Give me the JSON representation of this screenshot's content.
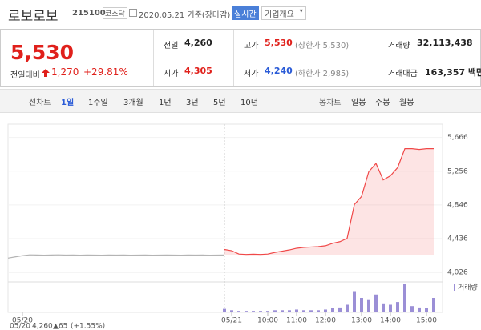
{
  "header": {
    "title": "로보로보",
    "code": "215100",
    "market": "코스닥",
    "date": "2020.05.21 기준(장마감)",
    "realtime": "실시간",
    "company": "기업개요"
  },
  "price": {
    "current": "5,530",
    "change_label": "전일대비",
    "change": "1,270",
    "change_pct": "+29.81%"
  },
  "quotes": [
    {
      "label": "전일",
      "value": "4,260"
    },
    {
      "label": "고가",
      "value": "5,530",
      "sub": "(상한가 5,530)"
    },
    {
      "label": "거래량",
      "value": "32,113,438"
    },
    {
      "label": "시가",
      "value": "4,305"
    },
    {
      "label": "저가",
      "value": "4,240",
      "sub": "(하한가 2,985)"
    },
    {
      "label": "거래대금",
      "value": "163,357 백만"
    }
  ],
  "tabs": {
    "line_label": "선차트",
    "line": [
      "1일",
      "1주일",
      "3개월",
      "1년",
      "3년",
      "5년",
      "10년"
    ],
    "candle_label": "봉차트",
    "candle": [
      "일봉",
      "주봉",
      "월봉"
    ]
  },
  "chart_data": {
    "type": "line",
    "categories": [
      null,
      null,
      "05/20",
      null,
      null,
      null,
      null,
      null,
      null,
      null,
      null,
      null,
      null,
      null,
      null,
      null,
      null,
      null,
      null,
      null,
      null,
      null,
      null,
      null,
      null,
      null,
      null,
      null,
      null,
      null,
      null,
      "05/21",
      null,
      null,
      null,
      null,
      "10:00",
      null,
      null,
      null,
      "11:00",
      null,
      null,
      null,
      "12:00",
      null,
      null,
      null,
      null,
      "13:00",
      null,
      null,
      null,
      "14:00",
      null,
      null,
      null,
      null,
      "15:00",
      null
    ],
    "series": [
      {
        "color": "#b4b4b4",
        "values": [
          4200,
          4215,
          4230,
          4240,
          4238,
          4236,
          4238,
          4240,
          4237,
          4238,
          4236,
          4238,
          4237,
          4236,
          4238,
          4237,
          4238,
          4236,
          4237,
          4238,
          4236,
          4237,
          4238,
          4237,
          4236,
          4238,
          4237,
          4238,
          4236,
          4237,
          4238,
          null,
          null,
          null,
          null,
          null,
          null,
          null,
          null,
          null,
          null,
          null,
          null,
          null,
          null,
          null,
          null,
          null,
          null,
          null,
          null,
          null,
          null,
          null,
          null,
          null,
          null,
          null,
          null,
          null
        ]
      },
      {
        "color": "#f04848",
        "values": [
          null,
          null,
          null,
          null,
          null,
          null,
          null,
          null,
          null,
          null,
          null,
          null,
          null,
          null,
          null,
          null,
          null,
          null,
          null,
          null,
          null,
          null,
          null,
          null,
          null,
          null,
          null,
          null,
          null,
          null,
          4305,
          4290,
          4250,
          4245,
          4248,
          4245,
          4250,
          4270,
          4285,
          4300,
          4320,
          4330,
          4335,
          4340,
          4350,
          4380,
          4400,
          4440,
          4850,
          4950,
          5250,
          5350,
          5150,
          5200,
          5300,
          5530,
          5530,
          5520,
          5530,
          5530
        ]
      }
    ],
    "volume": {
      "name": "거래량",
      "color": "#9b8fd6",
      "values": [
        null,
        null,
        null,
        null,
        null,
        null,
        null,
        null,
        null,
        null,
        null,
        null,
        null,
        null,
        null,
        null,
        null,
        null,
        null,
        null,
        null,
        null,
        null,
        null,
        null,
        null,
        null,
        null,
        null,
        null,
        4,
        2,
        1,
        1,
        1,
        1,
        1,
        2,
        2,
        2,
        3,
        2,
        2,
        2,
        3,
        5,
        6,
        10,
        30,
        20,
        18,
        25,
        12,
        10,
        14,
        40,
        8,
        6,
        5,
        20
      ]
    },
    "ylim": [
      3950,
      5750
    ],
    "yticks": [
      {
        "value": 5666,
        "label": "5,666"
      },
      {
        "value": 5256,
        "label": "5,256"
      },
      {
        "value": 4846,
        "label": "4,846"
      },
      {
        "value": 4436,
        "label": "4,436"
      },
      {
        "value": 4026,
        "label": "4,026"
      }
    ],
    "info": {
      "date": "05/20",
      "price": "4,260",
      "change": "▲65",
      "pct": "(+1.55%)"
    }
  }
}
